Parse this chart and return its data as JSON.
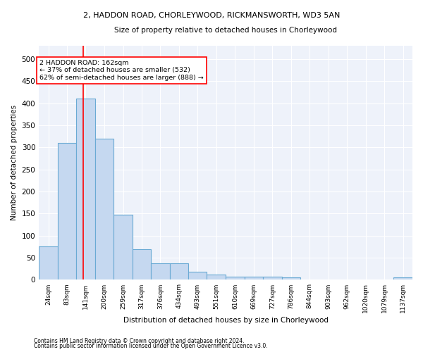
{
  "title_line1": "2, HADDON ROAD, CHORLEYWOOD, RICKMANSWORTH, WD3 5AN",
  "title_line2": "Size of property relative to detached houses in Chorleywood",
  "xlabel": "Distribution of detached houses by size in Chorleywood",
  "ylabel": "Number of detached properties",
  "bar_color": "#c5d8f0",
  "bar_edgecolor": "#6aaad4",
  "annotation_text": "2 HADDON ROAD: 162sqm\n← 37% of detached houses are smaller (532)\n62% of semi-detached houses are larger (888) →",
  "red_line_x": 162,
  "footnote1": "Contains HM Land Registry data © Crown copyright and database right 2024.",
  "footnote2": "Contains public sector information licensed under the Open Government Licence v3.0.",
  "bin_edges": [
    24,
    83,
    141,
    200,
    259,
    317,
    376,
    434,
    493,
    551,
    610,
    669,
    727,
    786,
    844,
    903,
    962,
    1020,
    1079,
    1137,
    1196
  ],
  "bar_heights": [
    75,
    310,
    410,
    320,
    148,
    70,
    37,
    37,
    18,
    12,
    7,
    7,
    7,
    5,
    0,
    0,
    0,
    0,
    0,
    5
  ],
  "ylim": [
    0,
    530
  ],
  "yticks": [
    0,
    50,
    100,
    150,
    200,
    250,
    300,
    350,
    400,
    450,
    500
  ],
  "background_color": "#eef2fa",
  "grid_color": "#ffffff",
  "figsize": [
    6.0,
    5.0
  ],
  "dpi": 100
}
